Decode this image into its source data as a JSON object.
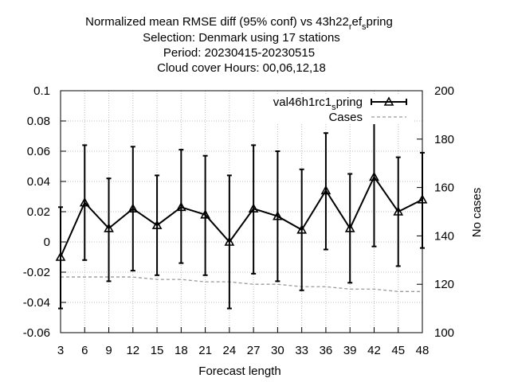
{
  "title_lines": [
    "Normalized mean RMSE diff (95% conf) vs 43h22",
    "Selection: Denmark using    17 stations",
    "Period: 20230415-20230515",
    "Cloud cover   Hours:  00,06,12,18"
  ],
  "title_sub": {
    "r": "r",
    "ef": "ef",
    "s": "s",
    "pring": "pring"
  },
  "chart_data": {
    "type": "line",
    "xlabel": "Forecast length",
    "ylabel": "",
    "y2label": "No cases",
    "x": [
      3,
      6,
      9,
      12,
      15,
      18,
      21,
      24,
      27,
      30,
      33,
      36,
      39,
      42,
      45,
      48
    ],
    "xlim": [
      3,
      48
    ],
    "ylim": [
      -0.06,
      0.1
    ],
    "y2lim": [
      100,
      200
    ],
    "xticks": [
      "3",
      "6",
      "9",
      "12",
      "15",
      "18",
      "21",
      "24",
      "27",
      "30",
      "33",
      "36",
      "39",
      "42",
      "45",
      "48"
    ],
    "yticks": [
      "-0.06",
      "-0.04",
      "-0.02",
      "0",
      "0.02",
      "0.04",
      "0.06",
      "0.08",
      "0.1"
    ],
    "y2ticks": [
      "100",
      "120",
      "140",
      "160",
      "180",
      "200"
    ],
    "grid": true,
    "legend_position": "top-right",
    "series": [
      {
        "name_base": "val46h1rc1",
        "name_sub": "s",
        "name_tail": "pring",
        "color": "#000000",
        "marker": "triangle",
        "values": [
          -0.01,
          0.026,
          0.009,
          0.022,
          0.011,
          0.023,
          0.018,
          0.0,
          0.022,
          0.017,
          0.008,
          0.034,
          0.009,
          0.043,
          0.02,
          0.028
        ],
        "err_low": [
          -0.044,
          -0.012,
          -0.026,
          -0.019,
          -0.022,
          -0.014,
          -0.022,
          -0.044,
          -0.021,
          -0.026,
          -0.032,
          -0.005,
          -0.027,
          -0.003,
          -0.016,
          -0.004
        ],
        "err_high": [
          0.023,
          0.064,
          0.042,
          0.063,
          0.044,
          0.061,
          0.057,
          0.044,
          0.064,
          0.06,
          0.048,
          0.072,
          0.045,
          0.089,
          0.056,
          0.059
        ]
      },
      {
        "name": "Cases",
        "color": "#999999",
        "axis": "y2",
        "values": [
          123,
          123,
          123,
          123,
          122,
          122,
          121,
          121,
          120,
          120,
          119,
          119,
          118,
          118,
          117,
          117
        ]
      }
    ]
  }
}
